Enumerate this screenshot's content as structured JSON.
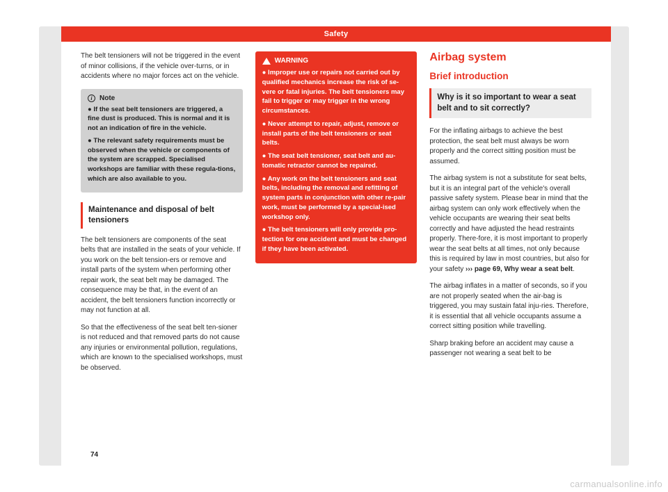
{
  "header": {
    "title": "Safety"
  },
  "page_number": "74",
  "watermark": "carmanualsonline.info",
  "col1": {
    "intro": "The belt tensioners will not be triggered in the event of minor collisions, if the vehicle over-turns, or in accidents where no major forces act on the vehicle.",
    "note_label": "Note",
    "note_b1": "● If the seat belt tensioners are triggered, a fine dust is produced. This is normal and it is not an indication of fire in the vehicle.",
    "note_b2": "● The relevant safety requirements must be observed when the vehicle or components of the system are scrapped. Specialised workshops are familiar with these regula-tions, which are also available to you.",
    "sub_heading": "Maintenance and disposal of belt tensioners",
    "p1": "The belt tensioners are components of the seat belts that are installed in the seats of your vehicle. If you work on the belt tension-ers or remove and install parts of the system when performing other repair work, the seat belt may be damaged. The consequence may be that, in the event of an accident, the belt tensioners function incorrectly or may not function at all.",
    "p2": "So that the effectiveness of the seat belt ten-sioner is not reduced and that removed parts do not cause any injuries or environmental pollution, regulations, which are known to the specialised workshops, must be observed."
  },
  "col2": {
    "warn_label": "WARNING",
    "w1": "● Improper use or repairs not carried out by qualified mechanics increase the risk of se-vere or fatal injuries. The belt tensioners may fail to trigger or may trigger in the wrong circumstances.",
    "w2": "● Never attempt to repair, adjust, remove or install parts of the belt tensioners or seat belts.",
    "w3": "● The seat belt tensioner, seat belt and au-tomatic retractor cannot be repaired.",
    "w4": "● Any work on the belt tensioners and seat belts, including the removal and refitting of system parts in conjunction with other re-pair work, must be performed by a special-ised workshop only.",
    "w5": "● The belt tensioners will only provide pro-tection for one accident and must be changed if they have been activated."
  },
  "col3": {
    "h1": "Airbag system",
    "h2": "Brief introduction",
    "gray_heading": "Why is it so important to wear a seat belt and to sit correctly?",
    "p1": "For the inflating airbags to achieve the best protection, the seat belt must always be worn properly and the correct sitting position must be assumed.",
    "p2a": "The airbag system is not a substitute for seat belts, but it is an integral part of the vehicle's overall passive safety system. Please bear in mind that the airbag system can only work effectively when the vehicle occupants are wearing their seat belts correctly and have adjusted the head restraints properly. There-fore, it is most important to properly wear the seat belts at all times, not only because this is required by law in most countries, but also for your safety ",
    "p2link": "››› page 69, Why wear a seat belt",
    "p2b": ".",
    "p3": "The airbag inflates in a matter of seconds, so if you are not properly seated when the air-bag is triggered, you may sustain fatal inju-ries. Therefore, it is essential that all vehicle occupants assume a correct sitting position while travelling.",
    "p4": "Sharp braking before an accident may cause a passenger not wearing a seat belt to be"
  },
  "colors": {
    "accent": "#ea3423",
    "page_bg": "#e8e8e8",
    "note_bg": "#d1d1d1",
    "gray_box_bg": "#ececec",
    "text": "#2a2a2a",
    "watermark": "#c9c9c9"
  }
}
